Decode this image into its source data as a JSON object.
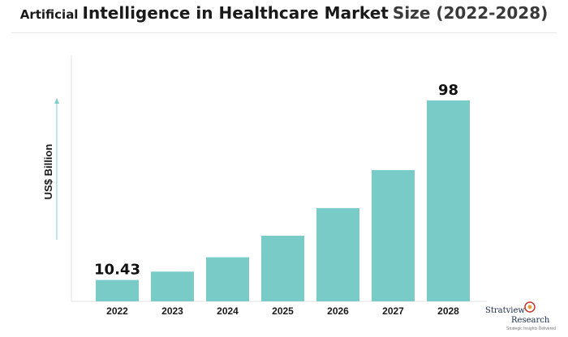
{
  "chart_data": {
    "type": "bar",
    "title_parts": [
      "Artificial",
      "Intelligence in Healthcare Market",
      "Size (2022-2028)"
    ],
    "ylabel": "US$ Billion",
    "xlabel": "",
    "categories": [
      "2022",
      "2023",
      "2024",
      "2025",
      "2026",
      "2027",
      "2028"
    ],
    "values": [
      10.43,
      14.5,
      21.5,
      32,
      45.5,
      64,
      98
    ],
    "data_labels": [
      {
        "category": "2022",
        "text": "10.43"
      },
      {
        "category": "2028",
        "text": "98"
      }
    ],
    "ylim": [
      0,
      100
    ],
    "grid": false,
    "bar_color": "#79CBC8",
    "axis_color": "#e3e3e3"
  },
  "logo": {
    "brand_top": "Stratview",
    "brand_bottom": "Research",
    "tagline": "Strategic Insights Delivered",
    "icon": "target-bulb-icon"
  }
}
